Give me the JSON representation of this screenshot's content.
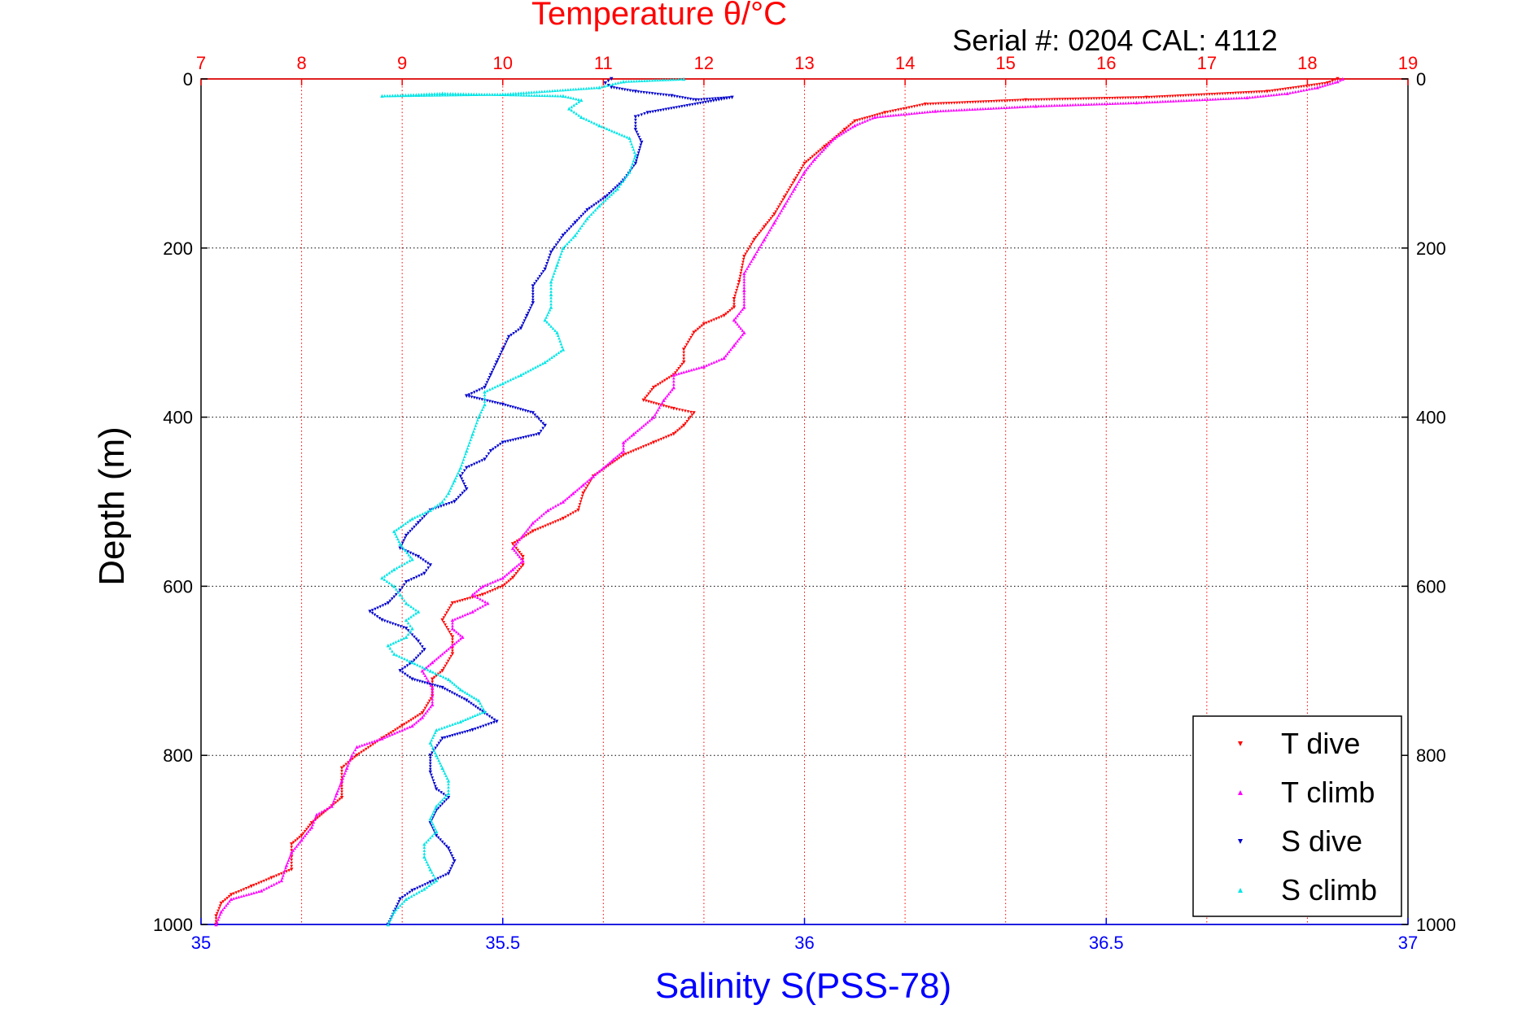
{
  "chart_data": {
    "type": "scatter",
    "title": "Temperature θ/°C",
    "subtitle": "Serial #: 0204  CAL: 4112",
    "xlabel": "Salinity S(PSS-78)",
    "ylabel": "Depth (m)",
    "x_salinity_lim": [
      35,
      37
    ],
    "x_salinity_ticks": [
      "35",
      "35.5",
      "36",
      "36.5",
      "37"
    ],
    "x_temperature_lim": [
      7,
      19
    ],
    "x_temperature_ticks": [
      "7",
      "8",
      "9",
      "10",
      "11",
      "12",
      "13",
      "14",
      "15",
      "16",
      "17",
      "18",
      "19"
    ],
    "ylim": [
      0,
      1000
    ],
    "y_reversed": true,
    "y_ticks": [
      "0",
      "200",
      "400",
      "600",
      "800",
      "1000"
    ],
    "grid": true,
    "legend_position": "bottom-right",
    "colors": {
      "temperature_axis": "#ff0000",
      "salinity_axis": "#0000ff",
      "t_dive": "#ff0000",
      "t_climb": "#ff00ff",
      "s_dive": "#0000cc",
      "s_climb": "#00e5e5"
    },
    "series": [
      {
        "name": "T dive",
        "axis": "temperature",
        "marker": "triangle-down",
        "color": "#ff0000",
        "points": [
          [
            18.3,
            0
          ],
          [
            18.2,
            5
          ],
          [
            17.6,
            15
          ],
          [
            16.4,
            22
          ],
          [
            15.2,
            25
          ],
          [
            14.2,
            30
          ],
          [
            13.8,
            40
          ],
          [
            13.5,
            50
          ],
          [
            13.4,
            60
          ],
          [
            13.2,
            80
          ],
          [
            13.0,
            100
          ],
          [
            12.9,
            120
          ],
          [
            12.8,
            140
          ],
          [
            12.7,
            160
          ],
          [
            12.6,
            175
          ],
          [
            12.5,
            190
          ],
          [
            12.4,
            210
          ],
          [
            12.35,
            240
          ],
          [
            12.3,
            260
          ],
          [
            12.3,
            270
          ],
          [
            12.2,
            280
          ],
          [
            12.0,
            290
          ],
          [
            11.9,
            300
          ],
          [
            11.8,
            320
          ],
          [
            11.8,
            335
          ],
          [
            11.7,
            350
          ],
          [
            11.5,
            365
          ],
          [
            11.4,
            380
          ],
          [
            11.7,
            390
          ],
          [
            11.9,
            395
          ],
          [
            11.8,
            410
          ],
          [
            11.7,
            420
          ],
          [
            11.5,
            430
          ],
          [
            11.2,
            445
          ],
          [
            10.9,
            470
          ],
          [
            10.8,
            490
          ],
          [
            10.75,
            510
          ],
          [
            10.6,
            520
          ],
          [
            10.3,
            535
          ],
          [
            10.1,
            550
          ],
          [
            10.2,
            565
          ],
          [
            10.2,
            575
          ],
          [
            10.1,
            590
          ],
          [
            10.0,
            600
          ],
          [
            9.8,
            610
          ],
          [
            9.5,
            620
          ],
          [
            9.4,
            640
          ],
          [
            9.5,
            660
          ],
          [
            9.5,
            680
          ],
          [
            9.4,
            700
          ],
          [
            9.3,
            710
          ],
          [
            9.3,
            730
          ],
          [
            9.2,
            750
          ],
          [
            9.0,
            765
          ],
          [
            8.8,
            780
          ],
          [
            8.55,
            800
          ],
          [
            8.4,
            815
          ],
          [
            8.4,
            830
          ],
          [
            8.4,
            850
          ],
          [
            8.3,
            860
          ],
          [
            8.1,
            880
          ],
          [
            8.0,
            895
          ],
          [
            7.9,
            905
          ],
          [
            7.9,
            920
          ],
          [
            7.9,
            935
          ],
          [
            7.7,
            945
          ],
          [
            7.5,
            955
          ],
          [
            7.3,
            965
          ],
          [
            7.2,
            975
          ],
          [
            7.15,
            990
          ],
          [
            7.15,
            1000
          ]
        ]
      },
      {
        "name": "T climb",
        "axis": "temperature",
        "marker": "triangle-up",
        "color": "#ff00ff",
        "points": [
          [
            7.15,
            1000
          ],
          [
            7.2,
            985
          ],
          [
            7.3,
            970
          ],
          [
            7.6,
            960
          ],
          [
            7.8,
            948
          ],
          [
            7.85,
            930
          ],
          [
            7.9,
            915
          ],
          [
            8.0,
            900
          ],
          [
            8.1,
            885
          ],
          [
            8.15,
            870
          ],
          [
            8.3,
            860
          ],
          [
            8.35,
            845
          ],
          [
            8.4,
            830
          ],
          [
            8.45,
            815
          ],
          [
            8.5,
            800
          ],
          [
            8.55,
            790
          ],
          [
            8.8,
            780
          ],
          [
            9.1,
            765
          ],
          [
            9.2,
            755
          ],
          [
            9.3,
            740
          ],
          [
            9.3,
            720
          ],
          [
            9.2,
            700
          ],
          [
            9.3,
            690
          ],
          [
            9.5,
            670
          ],
          [
            9.6,
            660
          ],
          [
            9.5,
            650
          ],
          [
            9.5,
            640
          ],
          [
            9.7,
            630
          ],
          [
            9.85,
            620
          ],
          [
            9.7,
            610
          ],
          [
            9.8,
            600
          ],
          [
            10.0,
            590
          ],
          [
            10.1,
            580
          ],
          [
            10.2,
            570
          ],
          [
            10.1,
            555
          ],
          [
            10.2,
            540
          ],
          [
            10.3,
            525
          ],
          [
            10.45,
            510
          ],
          [
            10.6,
            500
          ],
          [
            10.7,
            490
          ],
          [
            10.8,
            480
          ],
          [
            10.9,
            470
          ],
          [
            11.0,
            460
          ],
          [
            11.1,
            450
          ],
          [
            11.2,
            440
          ],
          [
            11.2,
            430
          ],
          [
            11.3,
            420
          ],
          [
            11.5,
            400
          ],
          [
            11.6,
            380
          ],
          [
            11.7,
            365
          ],
          [
            11.7,
            350
          ],
          [
            12.0,
            340
          ],
          [
            12.2,
            330
          ],
          [
            12.3,
            315
          ],
          [
            12.4,
            300
          ],
          [
            12.3,
            285
          ],
          [
            12.4,
            270
          ],
          [
            12.4,
            250
          ],
          [
            12.4,
            230
          ],
          [
            12.5,
            210
          ],
          [
            12.6,
            190
          ],
          [
            12.7,
            170
          ],
          [
            12.8,
            150
          ],
          [
            12.9,
            130
          ],
          [
            13.0,
            110
          ],
          [
            13.1,
            95
          ],
          [
            13.3,
            70
          ],
          [
            13.5,
            55
          ],
          [
            13.7,
            45
          ],
          [
            14.3,
            38
          ],
          [
            15.3,
            32
          ],
          [
            16.3,
            28
          ],
          [
            17.4,
            22
          ],
          [
            17.8,
            17
          ],
          [
            18.1,
            10
          ],
          [
            18.3,
            3
          ],
          [
            18.35,
            0
          ]
        ]
      },
      {
        "name": "S dive",
        "axis": "salinity",
        "marker": "triangle-down",
        "color": "#0000cc",
        "points": [
          [
            35.68,
            0
          ],
          [
            35.67,
            5
          ],
          [
            35.68,
            10
          ],
          [
            35.72,
            15
          ],
          [
            35.78,
            20
          ],
          [
            35.82,
            25
          ],
          [
            35.88,
            22
          ],
          [
            35.74,
            40
          ],
          [
            35.72,
            45
          ],
          [
            35.72,
            60
          ],
          [
            35.73,
            75
          ],
          [
            35.72,
            100
          ],
          [
            35.7,
            120
          ],
          [
            35.67,
            140
          ],
          [
            35.64,
            155
          ],
          [
            35.62,
            170
          ],
          [
            35.6,
            185
          ],
          [
            35.58,
            205
          ],
          [
            35.57,
            225
          ],
          [
            35.55,
            245
          ],
          [
            35.55,
            265
          ],
          [
            35.54,
            280
          ],
          [
            35.53,
            295
          ],
          [
            35.51,
            305
          ],
          [
            35.5,
            320
          ],
          [
            35.49,
            335
          ],
          [
            35.48,
            350
          ],
          [
            35.47,
            365
          ],
          [
            35.44,
            375
          ],
          [
            35.5,
            385
          ],
          [
            35.55,
            395
          ],
          [
            35.57,
            410
          ],
          [
            35.56,
            420
          ],
          [
            35.5,
            430
          ],
          [
            35.48,
            440
          ],
          [
            35.47,
            450
          ],
          [
            35.44,
            460
          ],
          [
            35.43,
            470
          ],
          [
            35.44,
            485
          ],
          [
            35.42,
            500
          ],
          [
            35.38,
            510
          ],
          [
            35.36,
            525
          ],
          [
            35.34,
            540
          ],
          [
            35.33,
            555
          ],
          [
            35.36,
            565
          ],
          [
            35.38,
            575
          ],
          [
            35.37,
            585
          ],
          [
            35.34,
            595
          ],
          [
            35.33,
            605
          ],
          [
            35.31,
            620
          ],
          [
            35.28,
            630
          ],
          [
            35.3,
            640
          ],
          [
            35.34,
            650
          ],
          [
            35.36,
            665
          ],
          [
            35.37,
            675
          ],
          [
            35.35,
            690
          ],
          [
            35.33,
            700
          ],
          [
            35.35,
            710
          ],
          [
            35.4,
            720
          ],
          [
            35.44,
            735
          ],
          [
            35.47,
            750
          ],
          [
            35.49,
            760
          ],
          [
            35.45,
            770
          ],
          [
            35.4,
            780
          ],
          [
            35.38,
            800
          ],
          [
            35.38,
            820
          ],
          [
            35.39,
            840
          ],
          [
            35.41,
            850
          ],
          [
            35.39,
            865
          ],
          [
            35.38,
            880
          ],
          [
            35.39,
            895
          ],
          [
            35.41,
            910
          ],
          [
            35.42,
            925
          ],
          [
            35.41,
            940
          ],
          [
            35.38,
            950
          ],
          [
            35.35,
            960
          ],
          [
            35.33,
            970
          ],
          [
            35.32,
            985
          ],
          [
            35.31,
            1000
          ]
        ]
      },
      {
        "name": "S climb",
        "axis": "salinity",
        "marker": "triangle-up",
        "color": "#00e5e5",
        "points": [
          [
            35.31,
            1000
          ],
          [
            35.32,
            985
          ],
          [
            35.34,
            970
          ],
          [
            35.37,
            958
          ],
          [
            35.39,
            948
          ],
          [
            35.38,
            935
          ],
          [
            35.37,
            920
          ],
          [
            35.37,
            905
          ],
          [
            35.39,
            890
          ],
          [
            35.38,
            875
          ],
          [
            35.39,
            860
          ],
          [
            35.41,
            845
          ],
          [
            35.41,
            830
          ],
          [
            35.4,
            815
          ],
          [
            35.39,
            800
          ],
          [
            35.38,
            785
          ],
          [
            35.39,
            770
          ],
          [
            35.43,
            760
          ],
          [
            35.47,
            748
          ],
          [
            35.46,
            735
          ],
          [
            35.43,
            722
          ],
          [
            35.41,
            710
          ],
          [
            35.38,
            700
          ],
          [
            35.35,
            690
          ],
          [
            35.32,
            680
          ],
          [
            35.31,
            670
          ],
          [
            35.34,
            660
          ],
          [
            35.35,
            650
          ],
          [
            35.34,
            640
          ],
          [
            35.36,
            630
          ],
          [
            35.34,
            620
          ],
          [
            35.33,
            610
          ],
          [
            35.32,
            600
          ],
          [
            35.3,
            590
          ],
          [
            35.32,
            580
          ],
          [
            35.35,
            568
          ],
          [
            35.33,
            550
          ],
          [
            35.32,
            535
          ],
          [
            35.35,
            520
          ],
          [
            35.38,
            510
          ],
          [
            35.4,
            500
          ],
          [
            35.41,
            490
          ],
          [
            35.42,
            475
          ],
          [
            35.43,
            460
          ],
          [
            35.44,
            440
          ],
          [
            35.45,
            420
          ],
          [
            35.46,
            400
          ],
          [
            35.47,
            385
          ],
          [
            35.47,
            370
          ],
          [
            35.5,
            360
          ],
          [
            35.53,
            350
          ],
          [
            35.57,
            335
          ],
          [
            35.6,
            320
          ],
          [
            35.59,
            300
          ],
          [
            35.57,
            285
          ],
          [
            35.58,
            270
          ],
          [
            35.58,
            255
          ],
          [
            35.58,
            240
          ],
          [
            35.59,
            220
          ],
          [
            35.6,
            200
          ],
          [
            35.62,
            185
          ],
          [
            35.64,
            165
          ],
          [
            35.66,
            150
          ],
          [
            35.69,
            130
          ],
          [
            35.71,
            110
          ],
          [
            35.72,
            90
          ],
          [
            35.71,
            70
          ],
          [
            35.66,
            55
          ],
          [
            35.63,
            45
          ],
          [
            35.61,
            35
          ],
          [
            35.63,
            25
          ],
          [
            35.6,
            20
          ],
          [
            35.4,
            17
          ],
          [
            35.3,
            20
          ],
          [
            35.5,
            18
          ],
          [
            35.66,
            10
          ],
          [
            35.7,
            3
          ],
          [
            35.8,
            0
          ]
        ]
      }
    ]
  }
}
